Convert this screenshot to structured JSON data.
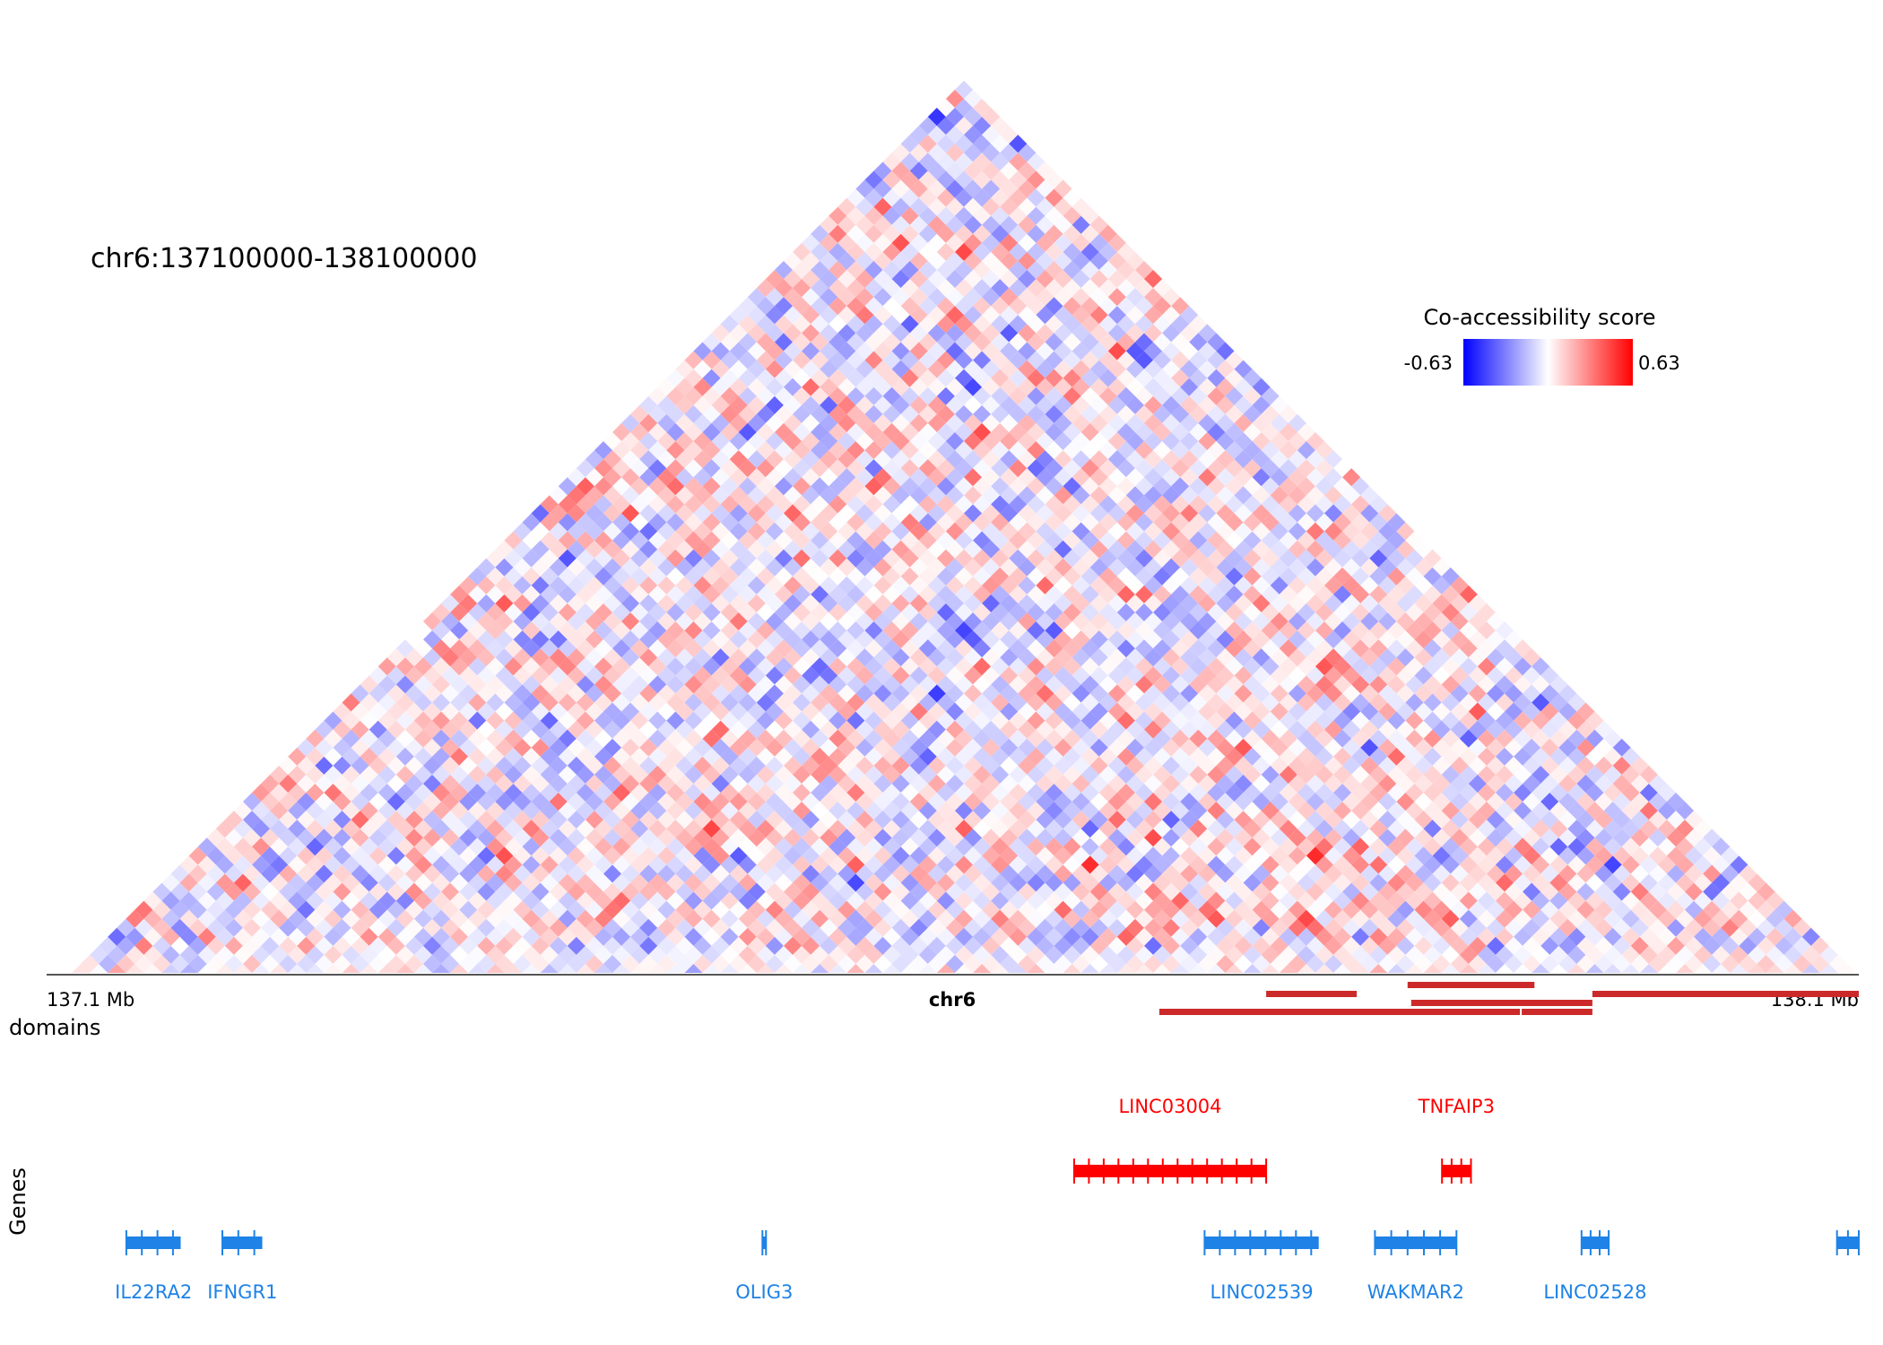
{
  "chart_data": {
    "type": "heatmap",
    "title": "chr6:137100000-138100000",
    "region": {
      "chrom": "chr6",
      "start": 137100000,
      "end": 138100000
    },
    "axis": {
      "left_label": "137.1 Mb",
      "center_label": "chr6",
      "right_label": "138.1 Mb"
    },
    "colorbar": {
      "title": "Co-accessibility score",
      "min": -0.63,
      "max": 0.63,
      "min_label": "-0.63",
      "max_label": "0.63",
      "colors": [
        "#0000ff",
        "#ffffff",
        "#ff0000"
      ]
    },
    "matrix": {
      "bins": 99,
      "bin_size_bp": 10101,
      "vmin": -0.63,
      "vmax": 0.63,
      "rendering": "upper-triangle rotated 45°, values shown as diverging blue-white-red"
    },
    "domains_track": {
      "label": "domains",
      "color": "#cc2a2a",
      "intervals": [
        {
          "start": 137773000,
          "end": 137823000
        },
        {
          "start": 137813000,
          "end": 137913000
        },
        {
          "start": 137953000,
          "end": 138100000
        },
        {
          "start": 137714000,
          "end": 137814000
        },
        {
          "start": 137851000,
          "end": 137921000
        },
        {
          "start": 137853000,
          "end": 137953000
        },
        {
          "start": 137914000,
          "end": 137953000
        }
      ]
    },
    "genes_track": {
      "label": "Genes",
      "plus_color": "#1e82e6",
      "minus_color": "#ff0000",
      "genes": [
        {
          "name": "IL22RA2",
          "start": 137144000,
          "end": 137174000,
          "strand": "+"
        },
        {
          "name": "IFNGR1",
          "start": 137197000,
          "end": 137219000,
          "strand": "+"
        },
        {
          "name": "OLIG3",
          "start": 137495000,
          "end": 137497000,
          "strand": "+"
        },
        {
          "name": "LINC03004",
          "start": 137667000,
          "end": 137773000,
          "strand": "-"
        },
        {
          "name": "LINC02539",
          "start": 137739000,
          "end": 137802000,
          "strand": "+"
        },
        {
          "name": "WAKMAR2",
          "start": 137833000,
          "end": 137878000,
          "strand": "+"
        },
        {
          "name": "TNFAIP3",
          "start": 137870000,
          "end": 137886000,
          "strand": "-"
        },
        {
          "name": "LINC02528",
          "start": 137947000,
          "end": 137962000,
          "strand": "+"
        },
        {
          "name": "",
          "start": 138088000,
          "end": 138100000,
          "strand": "+"
        }
      ]
    }
  }
}
